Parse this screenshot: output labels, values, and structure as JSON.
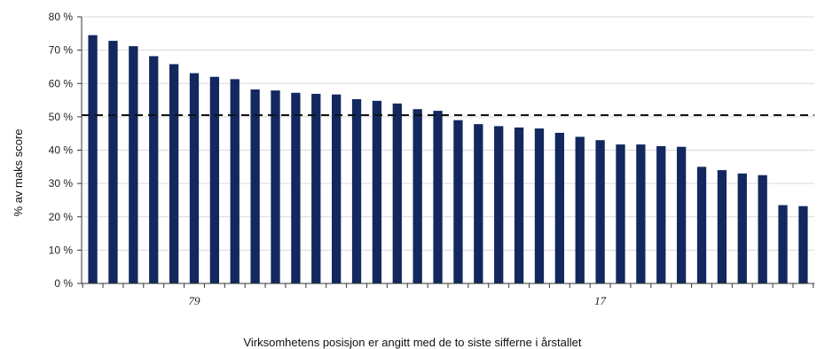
{
  "chart_data": {
    "type": "bar",
    "title": "",
    "ylabel": "% av maks score",
    "xlabel": "Virksomhetens posisjon er angitt med de to siste sifferne i årstallet",
    "ylim": [
      0,
      80
    ],
    "y_ticks": [
      "0 %",
      "10 %",
      "20 %",
      "30 %",
      "40 %",
      "50 %",
      "60 %",
      "70 %",
      "80 %"
    ],
    "grid": true,
    "reference_line": 50.5,
    "bar_color": "#12285e",
    "category_labels": [
      {
        "position": 5,
        "label": "79"
      },
      {
        "position": 25,
        "label": "17"
      }
    ],
    "values": [
      74.5,
      72.8,
      71.2,
      68.2,
      65.8,
      63.1,
      62.0,
      61.3,
      58.2,
      57.9,
      57.2,
      56.9,
      56.7,
      55.3,
      54.8,
      54.0,
      52.3,
      51.8,
      49.0,
      47.8,
      47.2,
      46.8,
      46.5,
      45.2,
      44.0,
      43.0,
      41.7,
      41.7,
      41.2,
      41.0,
      35.0,
      34.0,
      33.0,
      32.5,
      23.5,
      23.2
    ]
  }
}
